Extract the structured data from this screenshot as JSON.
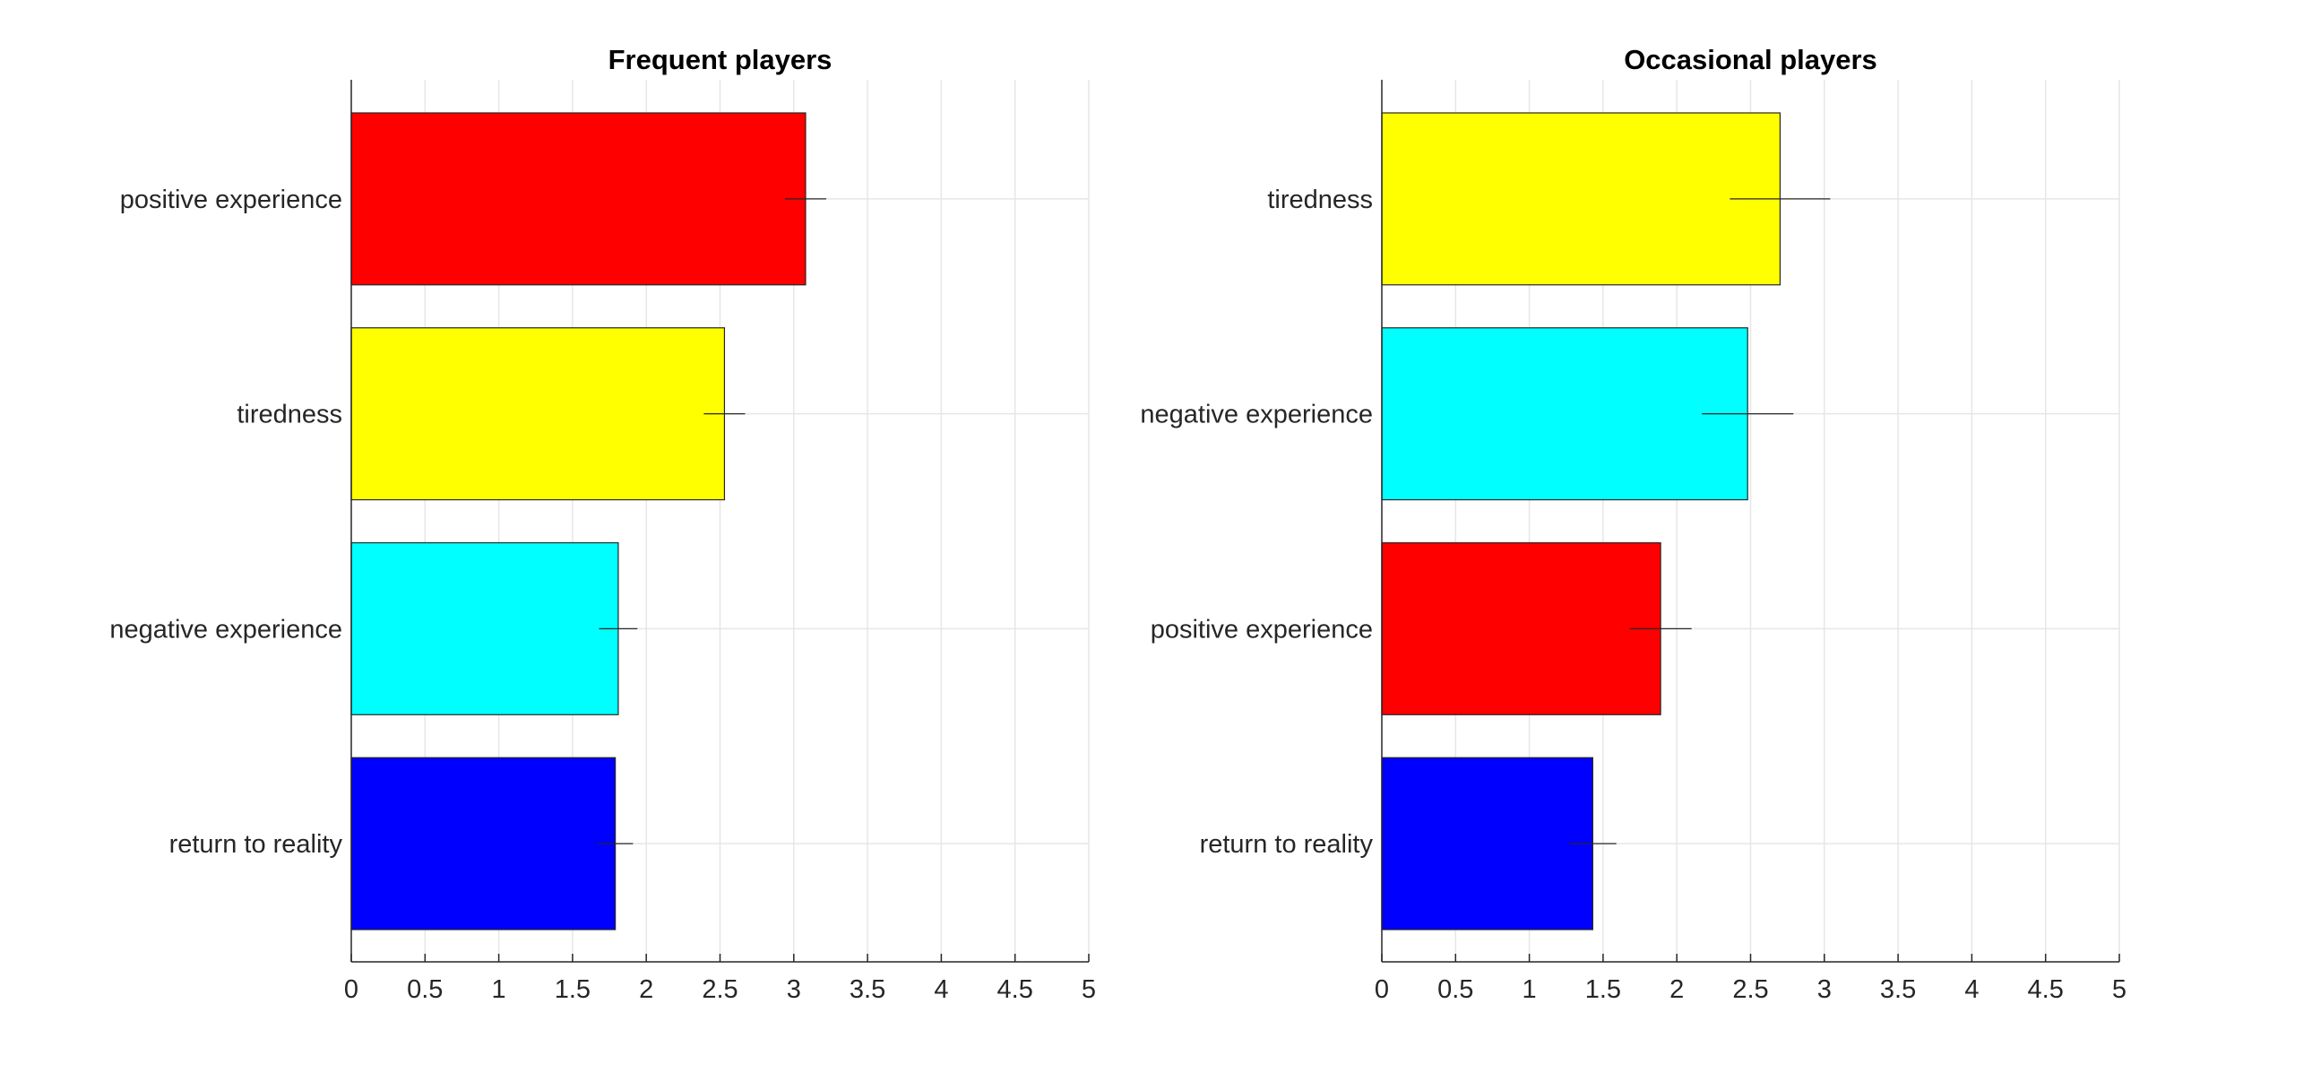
{
  "chart_data": [
    {
      "type": "bar",
      "orientation": "horizontal",
      "title": "Frequent players",
      "categories": [
        "positive experience",
        "tiredness",
        "negative experience",
        "return to reality"
      ],
      "values": [
        3.08,
        2.53,
        1.81,
        1.79
      ],
      "errors": [
        0.14,
        0.14,
        0.13,
        0.12
      ],
      "colors": [
        "#ff0000",
        "#ffff00",
        "#00ffff",
        "#0000ff"
      ],
      "xlim": [
        0,
        5
      ],
      "xticks": [
        0,
        0.5,
        1,
        1.5,
        2,
        2.5,
        3,
        3.5,
        4,
        4.5,
        5
      ],
      "xtick_labels": [
        "0",
        "0.5",
        "1",
        "1.5",
        "2",
        "2.5",
        "3",
        "3.5",
        "4",
        "4.5",
        "5"
      ],
      "grid": true,
      "xlabel": "",
      "ylabel": ""
    },
    {
      "type": "bar",
      "orientation": "horizontal",
      "title": "Occasional players",
      "categories": [
        "tiredness",
        "negative experience",
        "positive experience",
        "return to reality"
      ],
      "values": [
        2.7,
        2.48,
        1.89,
        1.43
      ],
      "errors": [
        0.34,
        0.31,
        0.21,
        0.16
      ],
      "colors": [
        "#ffff00",
        "#00ffff",
        "#ff0000",
        "#0000ff"
      ],
      "xlim": [
        0,
        5
      ],
      "xticks": [
        0,
        0.5,
        1,
        1.5,
        2,
        2.5,
        3,
        3.5,
        4,
        4.5,
        5
      ],
      "xtick_labels": [
        "0",
        "0.5",
        "1",
        "1.5",
        "2",
        "2.5",
        "3",
        "3.5",
        "4",
        "4.5",
        "5"
      ],
      "grid": true,
      "xlabel": "",
      "ylabel": ""
    }
  ]
}
